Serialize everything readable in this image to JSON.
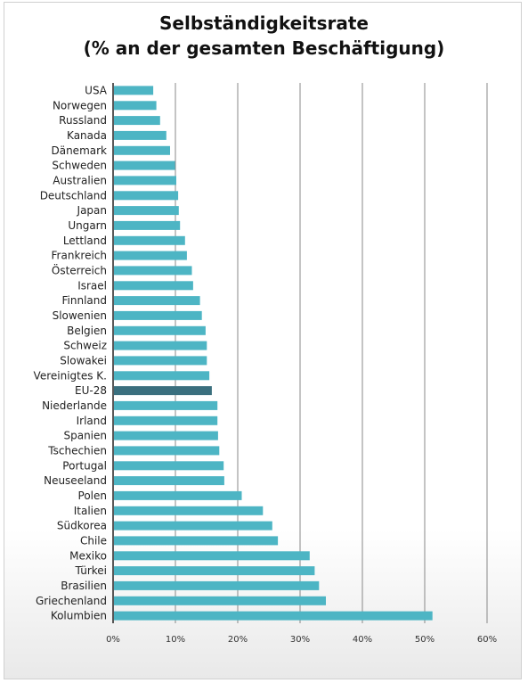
{
  "chart_data": {
    "type": "bar",
    "orientation": "horizontal",
    "title_line1": "Selbständigkeitsrate",
    "title_line2": "(% an der gesamten Beschäftigung)",
    "xlabel": "",
    "ylabel": "",
    "xlim": [
      0,
      60
    ],
    "x_ticks": [
      0,
      10,
      20,
      30,
      40,
      50,
      60
    ],
    "x_tick_labels": [
      "0%",
      "10%",
      "20%",
      "30%",
      "40%",
      "50%",
      "60%"
    ],
    "grid": "vertical",
    "legend": "none",
    "colors": {
      "bar": "#4db5c4",
      "highlight": "#3a6f7e",
      "grid": "#888888",
      "axis": "#222222"
    },
    "highlight_category": "EU-28",
    "categories": [
      "USA",
      "Norwegen",
      "Russland",
      "Kanada",
      "Dänemark",
      "Schweden",
      "Australien",
      "Deutschland",
      "Japan",
      "Ungarn",
      "Lettland",
      "Frankreich",
      "Österreich",
      "Israel",
      "Finnland",
      "Slowenien",
      "Belgien",
      "Schweiz",
      "Slowakei",
      "Vereinigtes K.",
      "EU-28",
      "Niederlande",
      "Irland",
      "Spanien",
      "Tschechien",
      "Portugal",
      "Neuseeland",
      "Polen",
      "Italien",
      "Südkorea",
      "Chile",
      "Mexiko",
      "Türkei",
      "Brasilien",
      "Griechenland",
      "Kolumbien"
    ],
    "values": [
      6.3,
      6.8,
      7.4,
      8.4,
      9.0,
      9.8,
      10.0,
      10.3,
      10.4,
      10.6,
      11.4,
      11.7,
      12.5,
      12.7,
      13.8,
      14.1,
      14.7,
      14.9,
      14.9,
      15.3,
      15.7,
      16.6,
      16.6,
      16.7,
      16.9,
      17.6,
      17.7,
      20.5,
      23.9,
      25.4,
      26.3,
      31.4,
      32.2,
      32.9,
      34.0,
      51.1
    ]
  }
}
